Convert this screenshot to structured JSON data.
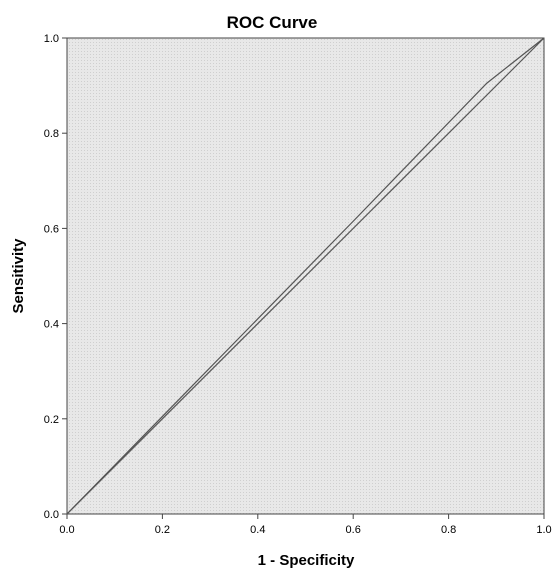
{
  "chart_data": {
    "type": "line",
    "title": "ROC Curve",
    "xlabel": "1 - Specificity",
    "ylabel": "Sensitivity",
    "xlim": [
      0,
      1
    ],
    "ylim": [
      0,
      1
    ],
    "xticks": [
      "0.0",
      "0.2",
      "0.4",
      "0.6",
      "0.8",
      "1.0"
    ],
    "yticks": [
      "0.0",
      "0.2",
      "0.4",
      "0.6",
      "0.8",
      "1.0"
    ],
    "grid": false,
    "legend": "none",
    "plot_background": "#e6e6e6",
    "line_color": "#555555",
    "series": [
      {
        "x": [
          0.0,
          0.2,
          0.4,
          0.6,
          0.88,
          1.0
        ],
        "y": [
          0.0,
          0.205,
          0.41,
          0.615,
          0.905,
          1.0
        ]
      },
      {
        "x": [
          0.0,
          1.0
        ],
        "y": [
          0.0,
          1.0
        ]
      }
    ]
  }
}
